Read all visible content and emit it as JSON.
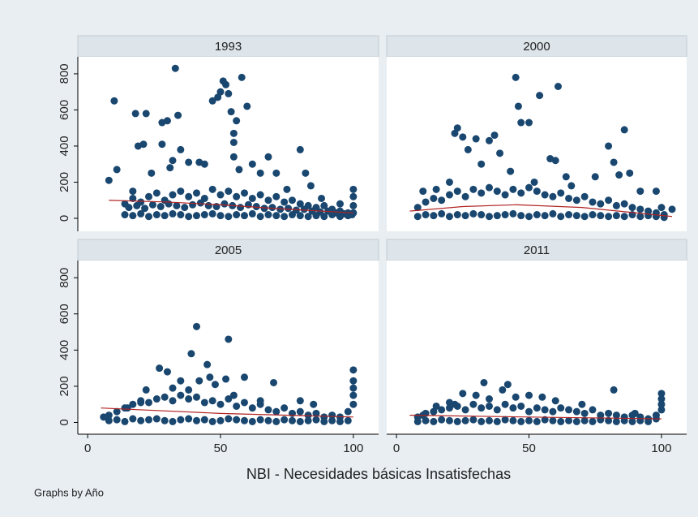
{
  "chart_data": [
    {
      "type": "scatter",
      "title": "1993",
      "color": "#1a476f",
      "xlim": [
        -3.7,
        109.5
      ],
      "ylim": [
        -72,
        894
      ],
      "yticks": [
        0,
        200,
        400,
        600,
        800
      ],
      "x": [
        10,
        8,
        11,
        17,
        18,
        19,
        21,
        22,
        24,
        28,
        28,
        30,
        31,
        32,
        33,
        34,
        35,
        38,
        42,
        44,
        47,
        49,
        50,
        51,
        52,
        53,
        54,
        55,
        56,
        58,
        55,
        60,
        55,
        57,
        62,
        65,
        68,
        71,
        75,
        80,
        82,
        84,
        88,
        95,
        100,
        100,
        100,
        100,
        14,
        17,
        20,
        23,
        26,
        29,
        32,
        35,
        38,
        41,
        44,
        47,
        50,
        53,
        56,
        59,
        62,
        65,
        68,
        71,
        74,
        77,
        80,
        83,
        86,
        89,
        92,
        95,
        98,
        14,
        17,
        20,
        23,
        26,
        29,
        32,
        35,
        38,
        41,
        44,
        47,
        50,
        53,
        56,
        59,
        62,
        65,
        68,
        71,
        74,
        77,
        80,
        83,
        86,
        89,
        92,
        95,
        98,
        15.5,
        18.5,
        21.5,
        24.5,
        27.5,
        30.5,
        33.5,
        36.5,
        39.5,
        42.5,
        45.5,
        48.5,
        51.5,
        54.5,
        57.5,
        60.5,
        63.5,
        66.5,
        69.5,
        72.5,
        75.5,
        78.5,
        81.5,
        84.5,
        87.5,
        90.5,
        93.5,
        96.5,
        99.5
      ],
      "values": [
        650,
        210,
        270,
        150,
        580,
        400,
        410,
        580,
        250,
        530,
        410,
        540,
        280,
        320,
        830,
        570,
        380,
        310,
        310,
        300,
        650,
        670,
        700,
        760,
        740,
        690,
        590,
        470,
        540,
        780,
        420,
        620,
        340,
        270,
        300,
        250,
        340,
        250,
        160,
        380,
        250,
        180,
        110,
        80,
        160,
        120,
        70,
        30,
        20,
        15,
        25,
        10,
        20,
        15,
        25,
        20,
        10,
        15,
        20,
        25,
        15,
        10,
        20,
        15,
        25,
        10,
        20,
        15,
        10,
        20,
        15,
        10,
        15,
        10,
        20,
        10,
        15,
        80,
        110,
        90,
        120,
        140,
        100,
        130,
        150,
        120,
        140,
        110,
        160,
        130,
        150,
        120,
        140,
        110,
        130,
        100,
        120,
        90,
        100,
        80,
        70,
        60,
        70,
        50,
        40,
        30,
        60,
        70,
        55,
        75,
        65,
        80,
        70,
        60,
        75,
        85,
        70,
        65,
        80,
        70,
        60,
        75,
        65,
        55,
        60,
        50,
        55,
        45,
        50,
        40,
        35,
        40,
        30,
        25,
        20
      ],
      "fit": {
        "color": "#b22222",
        "x": [
          8,
          30,
          50,
          70,
          100
        ],
        "values": [
          100,
          90,
          75,
          55,
          30
        ]
      }
    },
    {
      "type": "scatter",
      "title": "2000",
      "color": "#1a476f",
      "xlim": [
        -3.7,
        109.5
      ],
      "ylim": [
        -72,
        894
      ],
      "x": [
        10,
        15,
        20,
        22,
        23,
        25,
        27,
        30,
        32,
        35,
        37,
        39,
        43,
        45,
        46,
        47,
        50,
        52,
        54,
        58,
        60,
        61,
        64,
        66,
        75,
        80,
        82,
        84,
        86,
        88,
        92,
        98,
        100,
        104,
        8,
        11,
        14,
        17,
        20,
        23,
        26,
        29,
        32,
        35,
        38,
        41,
        44,
        47,
        50,
        53,
        56,
        59,
        62,
        65,
        68,
        71,
        74,
        77,
        80,
        83,
        86,
        89,
        92,
        95,
        98,
        101,
        8,
        11,
        14,
        17,
        20,
        23,
        26,
        29,
        32,
        35,
        38,
        41,
        44,
        47,
        50,
        53,
        56,
        59,
        62,
        65,
        68,
        71,
        74,
        77,
        80,
        83,
        86,
        89,
        92,
        95,
        98,
        101
      ],
      "values": [
        150,
        160,
        200,
        470,
        500,
        450,
        380,
        440,
        300,
        430,
        460,
        360,
        260,
        780,
        620,
        530,
        530,
        200,
        680,
        330,
        320,
        730,
        230,
        180,
        230,
        400,
        310,
        240,
        490,
        250,
        150,
        150,
        60,
        50,
        10,
        20,
        15,
        25,
        10,
        20,
        15,
        25,
        20,
        10,
        15,
        20,
        25,
        15,
        10,
        20,
        15,
        25,
        10,
        20,
        15,
        10,
        20,
        15,
        10,
        15,
        10,
        20,
        10,
        15,
        10,
        5,
        60,
        90,
        110,
        100,
        130,
        150,
        120,
        160,
        140,
        170,
        150,
        130,
        160,
        140,
        170,
        150,
        130,
        120,
        140,
        110,
        100,
        120,
        90,
        80,
        100,
        70,
        80,
        60,
        50,
        40,
        30,
        20
      ],
      "fit": {
        "color": "#b22222",
        "x": [
          5,
          25,
          45,
          70,
          104
        ],
        "values": [
          40,
          65,
          75,
          60,
          10
        ]
      }
    },
    {
      "type": "scatter",
      "title": "2005",
      "color": "#1a476f",
      "xlim": [
        -3.7,
        109.5
      ],
      "ylim": [
        -65,
        895
      ],
      "yticks": [
        0,
        200,
        400,
        600,
        800
      ],
      "xticks": [
        0,
        50,
        100
      ],
      "x": [
        6,
        15,
        20,
        22,
        27,
        30,
        32,
        35,
        38,
        39,
        41,
        42,
        45,
        46,
        48,
        52,
        53,
        55,
        59,
        65,
        70,
        80,
        85,
        100,
        100,
        100,
        100,
        100,
        8,
        11,
        14,
        17,
        20,
        23,
        26,
        29,
        32,
        35,
        38,
        41,
        44,
        47,
        50,
        53,
        56,
        59,
        62,
        65,
        68,
        71,
        74,
        77,
        80,
        83,
        86,
        89,
        92,
        95,
        98,
        8,
        11,
        14,
        17,
        20,
        23,
        26,
        29,
        32,
        35,
        38,
        41,
        44,
        47,
        50,
        53,
        56,
        59,
        62,
        65,
        68,
        71,
        74,
        77,
        80,
        83,
        86,
        89,
        92,
        95,
        98
      ],
      "values": [
        30,
        80,
        110,
        180,
        300,
        280,
        190,
        230,
        180,
        380,
        530,
        230,
        320,
        250,
        210,
        240,
        460,
        150,
        250,
        120,
        220,
        120,
        100,
        290,
        230,
        190,
        150,
        100,
        10,
        15,
        5,
        20,
        10,
        15,
        20,
        10,
        5,
        15,
        20,
        10,
        15,
        5,
        10,
        20,
        15,
        10,
        5,
        15,
        10,
        5,
        15,
        10,
        5,
        10,
        15,
        5,
        10,
        5,
        10,
        40,
        60,
        80,
        100,
        120,
        110,
        130,
        140,
        120,
        150,
        130,
        140,
        110,
        120,
        100,
        130,
        90,
        110,
        80,
        100,
        70,
        60,
        80,
        50,
        60,
        40,
        50,
        30,
        40,
        30,
        60
      ],
      "fit": {
        "color": "#b22222",
        "x": [
          5,
          50,
          100
        ],
        "values": [
          80,
          50,
          30
        ]
      }
    },
    {
      "type": "scatter",
      "title": "2011",
      "color": "#1a476f",
      "xlim": [
        -3.7,
        109.5
      ],
      "ylim": [
        -65,
        895
      ],
      "xticks": [
        0,
        50,
        100
      ],
      "x": [
        10,
        15,
        20,
        22,
        25,
        30,
        33,
        35,
        40,
        42,
        45,
        50,
        55,
        60,
        70,
        82,
        90,
        100,
        100,
        100,
        100,
        8,
        11,
        14,
        17,
        20,
        23,
        26,
        29,
        32,
        35,
        38,
        41,
        44,
        47,
        50,
        53,
        56,
        59,
        62,
        65,
        68,
        71,
        74,
        77,
        80,
        83,
        86,
        89,
        92,
        95,
        98,
        8,
        11,
        14,
        17,
        20,
        23,
        26,
        29,
        32,
        35,
        38,
        41,
        44,
        47,
        50,
        53,
        56,
        59,
        62,
        65,
        68,
        71,
        74,
        77,
        80,
        83,
        86,
        89,
        92,
        95,
        98
      ],
      "values": [
        40,
        90,
        110,
        100,
        160,
        150,
        220,
        130,
        180,
        210,
        140,
        150,
        140,
        120,
        100,
        180,
        50,
        160,
        130,
        100,
        70,
        5,
        10,
        5,
        15,
        10,
        5,
        10,
        15,
        5,
        10,
        5,
        15,
        10,
        5,
        10,
        5,
        15,
        10,
        5,
        10,
        5,
        10,
        5,
        15,
        10,
        5,
        10,
        5,
        10,
        5,
        20,
        30,
        50,
        60,
        70,
        80,
        90,
        70,
        100,
        80,
        90,
        70,
        100,
        80,
        90,
        60,
        80,
        70,
        60,
        80,
        70,
        60,
        50,
        70,
        40,
        50,
        40,
        30,
        40,
        30,
        20,
        40
      ],
      "fit": {
        "color": "#b22222",
        "x": [
          5,
          50,
          100
        ],
        "values": [
          40,
          30,
          20
        ]
      }
    }
  ],
  "xlabel": "NBI - Necesidades básicas Insatisfechas",
  "note": "Graphs by Año"
}
